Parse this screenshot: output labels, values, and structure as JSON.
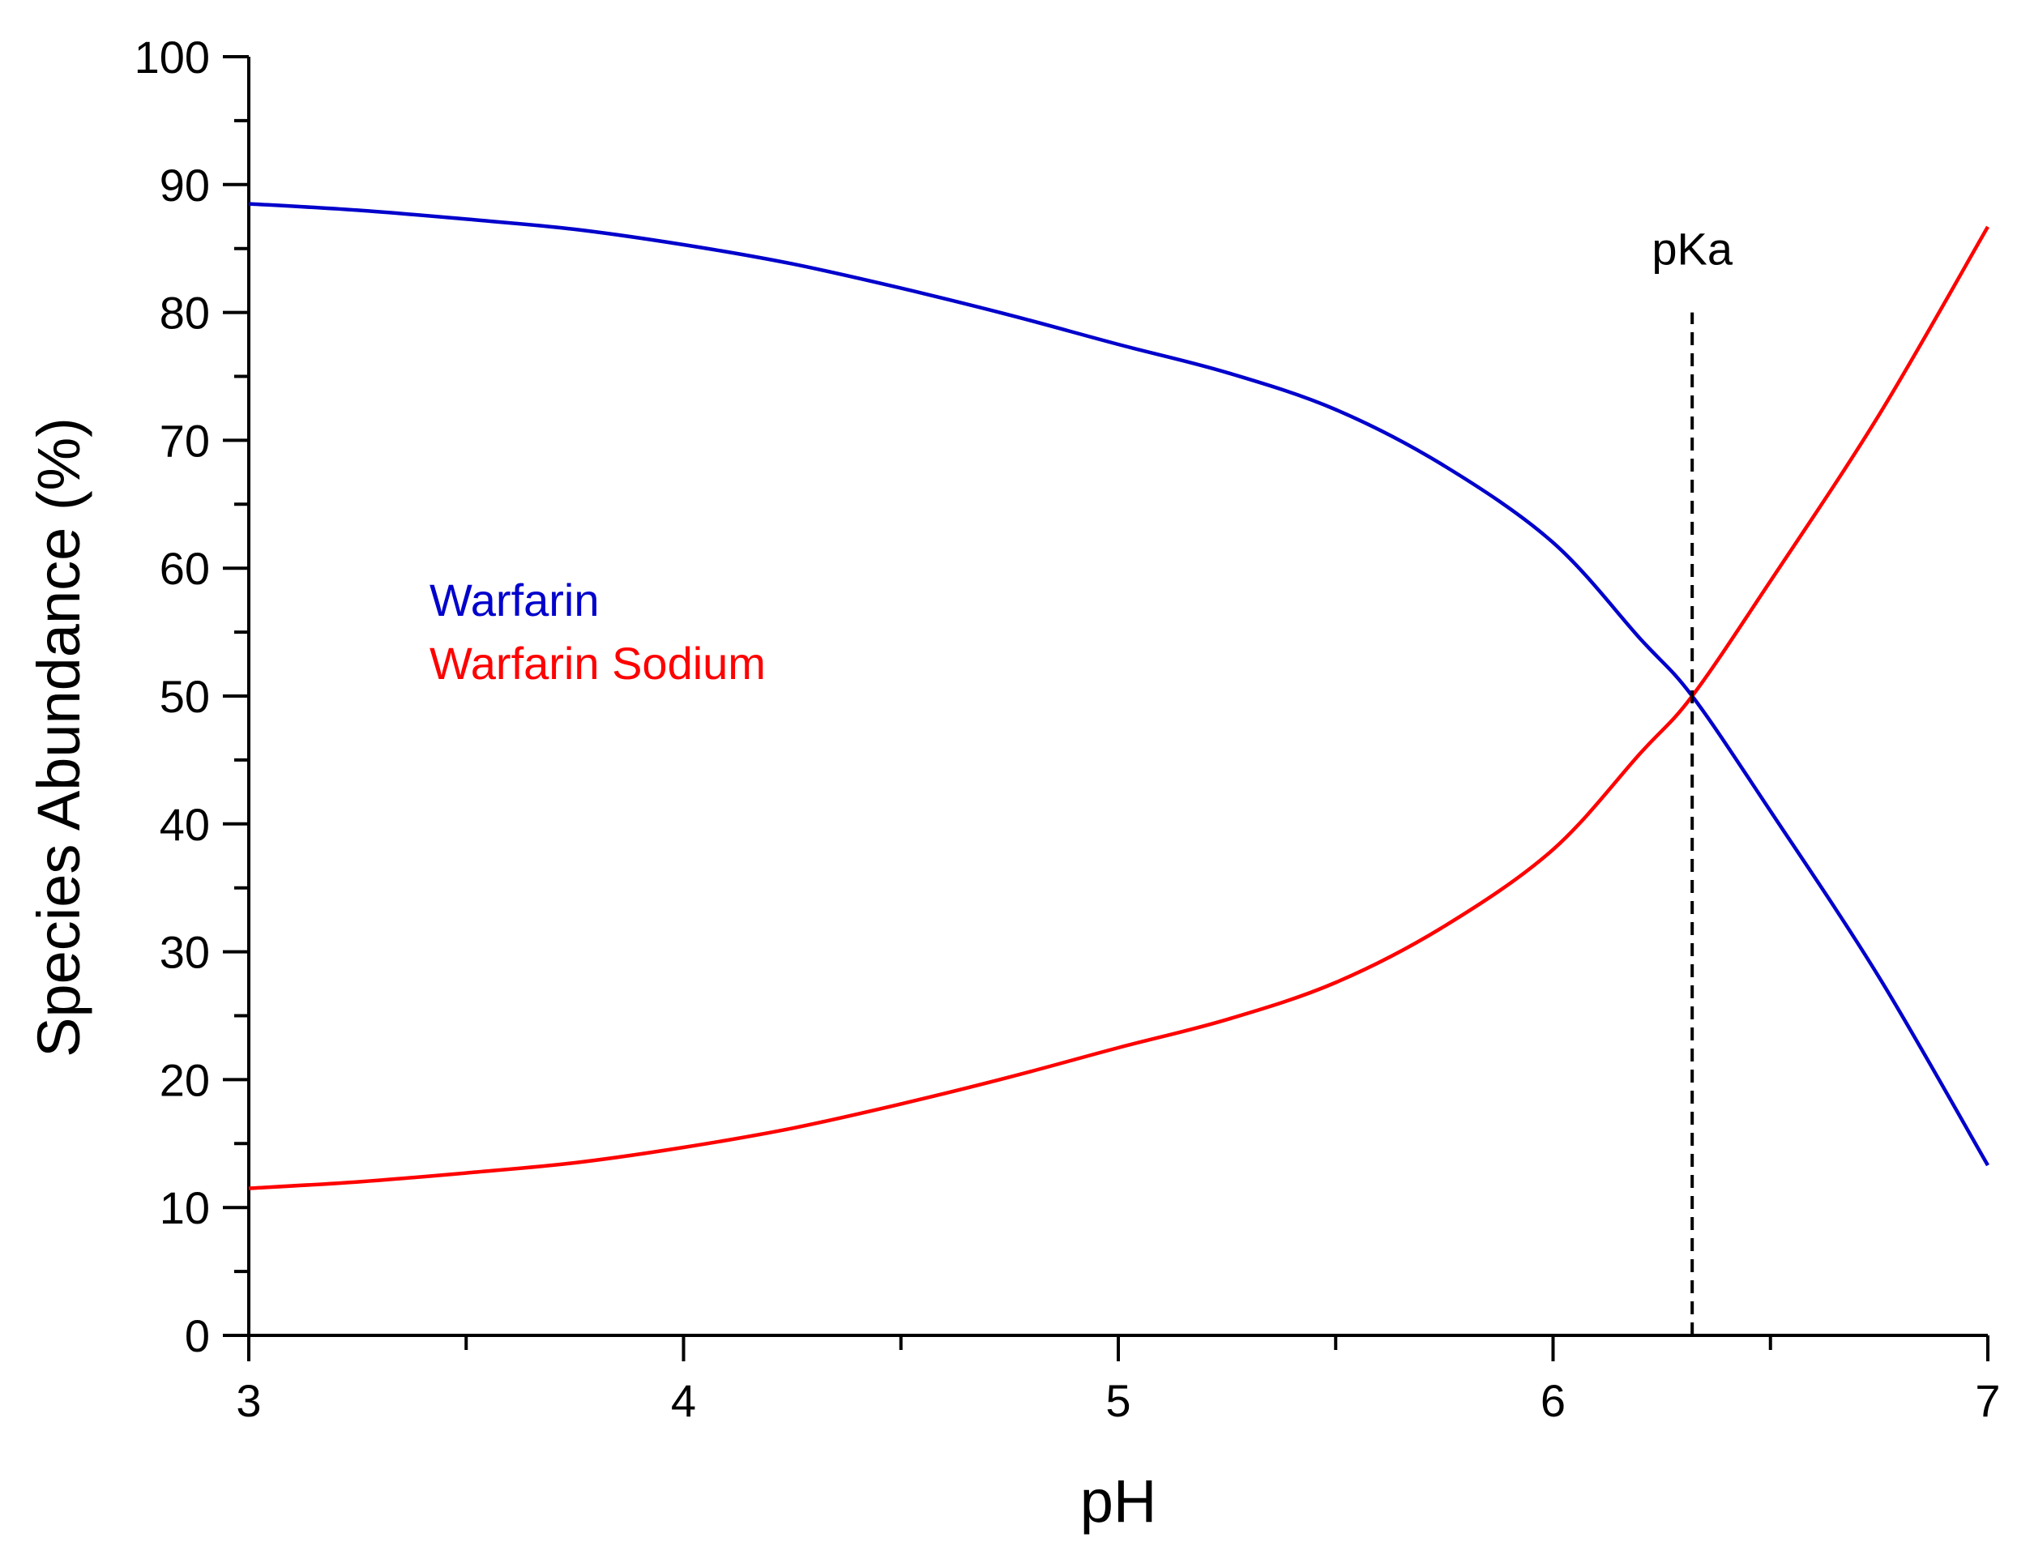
{
  "chart_data": {
    "type": "line",
    "title": "",
    "xlabel": "pH",
    "ylabel": "Species Abundance (%)",
    "xlim": [
      3,
      7
    ],
    "ylim": [
      0,
      100
    ],
    "x_ticks": [
      3,
      4,
      5,
      6,
      7
    ],
    "x_tick_labels": [
      "3",
      "4",
      "5",
      "6",
      "7"
    ],
    "x_minor_step": 0.5,
    "y_ticks": [
      0,
      10,
      20,
      30,
      40,
      50,
      60,
      70,
      80,
      90,
      100
    ],
    "y_tick_labels": [
      "0",
      "10",
      "20",
      "30",
      "40",
      "50",
      "60",
      "70",
      "80",
      "90",
      "100"
    ],
    "y_minor_step": 5,
    "grid": false,
    "legend": {
      "placement": "left-middle, inside plot"
    },
    "x": [
      3.0,
      3.25,
      3.5,
      3.75,
      4.0,
      4.25,
      4.5,
      4.75,
      5.0,
      5.25,
      5.5,
      5.75,
      6.0,
      6.2,
      6.32,
      6.5,
      6.75,
      7.0
    ],
    "series": [
      {
        "name": "Warfarin",
        "color": "#0000cc",
        "values": [
          88.5,
          88.0,
          87.3,
          86.5,
          85.3,
          83.8,
          81.9,
          79.8,
          77.5,
          75.3,
          72.4,
          68.0,
          62.0,
          54.5,
          50.0,
          41.0,
          28.0,
          13.3
        ]
      },
      {
        "name": "Warfarin Sodium",
        "color": "#ff0000",
        "values": [
          11.5,
          12.0,
          12.7,
          13.5,
          14.7,
          16.2,
          18.1,
          20.2,
          22.5,
          24.7,
          27.6,
          32.0,
          38.0,
          45.5,
          50.0,
          59.0,
          72.0,
          86.7
        ]
      }
    ],
    "annotations": [
      {
        "type": "vline",
        "x": 6.32,
        "y_from": 0,
        "y_to": 80,
        "style": "dashed",
        "color": "#000000"
      },
      {
        "type": "text",
        "text": "pKa",
        "x": 6.32,
        "y": 85
      }
    ]
  }
}
